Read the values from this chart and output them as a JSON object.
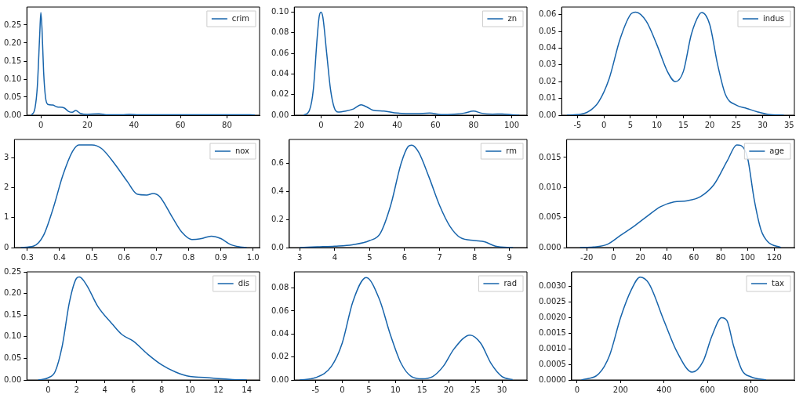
{
  "chart_data": [
    {
      "type": "line",
      "legend": "top right",
      "grid": false,
      "xlim": [
        -6,
        94
      ],
      "ylim": [
        0,
        0.3
      ],
      "xticks": [
        0,
        20,
        40,
        60,
        80
      ],
      "yticks": [
        {
          "value": 0,
          "label": "0.00"
        },
        {
          "value": 0.05,
          "label": "0.05"
        },
        {
          "value": 0.1,
          "label": "0.10"
        },
        {
          "value": 0.15,
          "label": "0.15"
        },
        {
          "value": 0.2,
          "label": "0.20"
        },
        {
          "value": 0.25,
          "label": "0.25"
        }
      ],
      "series": [
        {
          "name": "crim",
          "color": "#1764ab",
          "x": [
            -4,
            -2.5,
            -1.5,
            -0.5,
            0,
            0.5,
            1.2,
            2,
            3,
            5,
            7,
            10,
            12,
            13.5,
            15,
            17,
            20,
            25,
            28,
            35,
            38,
            42,
            50,
            68,
            75,
            90,
            92
          ],
          "values": [
            0,
            0.02,
            0.08,
            0.22,
            0.285,
            0.24,
            0.12,
            0.05,
            0.03,
            0.028,
            0.023,
            0.02,
            0.01,
            0.008,
            0.013,
            0.005,
            0.002,
            0.004,
            0.001,
            0.001,
            0.002,
            0.001,
            0.001,
            0.001,
            0.001,
            0.001,
            0
          ]
        }
      ]
    },
    {
      "type": "line",
      "legend": "top right",
      "grid": false,
      "xlim": [
        -14,
        108
      ],
      "ylim": [
        0,
        0.105
      ],
      "xticks": [
        0,
        20,
        40,
        60,
        80,
        100
      ],
      "yticks": [
        {
          "value": 0,
          "label": "0.00"
        },
        {
          "value": 0.02,
          "label": "0.02"
        },
        {
          "value": 0.04,
          "label": "0.04"
        },
        {
          "value": 0.06,
          "label": "0.06"
        },
        {
          "value": 0.08,
          "label": "0.08"
        },
        {
          "value": 0.1,
          "label": "0.10"
        }
      ],
      "series": [
        {
          "name": "zn",
          "color": "#1764ab",
          "x": [
            -9,
            -6,
            -4,
            -2,
            -1,
            0,
            1,
            3,
            5,
            7,
            9,
            13,
            17,
            21,
            24,
            27,
            33,
            40,
            50,
            57,
            63,
            70,
            75,
            80,
            84,
            90,
            95,
            100,
            104
          ],
          "values": [
            0,
            0.005,
            0.025,
            0.075,
            0.095,
            0.1,
            0.095,
            0.06,
            0.025,
            0.007,
            0.003,
            0.004,
            0.006,
            0.01,
            0.008,
            0.005,
            0.004,
            0.002,
            0.0015,
            0.002,
            0.0005,
            0.001,
            0.002,
            0.004,
            0.002,
            0.001,
            0.0012,
            0.0003,
            0
          ]
        }
      ]
    },
    {
      "type": "line",
      "legend": "top right",
      "grid": false,
      "xlim": [
        -8,
        36
      ],
      "ylim": [
        0,
        0.0645
      ],
      "xticks": [
        -5,
        0,
        5,
        10,
        15,
        20,
        25,
        30,
        35
      ],
      "yticks": [
        {
          "value": 0,
          "label": "0.00"
        },
        {
          "value": 0.01,
          "label": "0.01"
        },
        {
          "value": 0.02,
          "label": "0.02"
        },
        {
          "value": 0.03,
          "label": "0.03"
        },
        {
          "value": 0.04,
          "label": "0.04"
        },
        {
          "value": 0.05,
          "label": "0.05"
        },
        {
          "value": 0.06,
          "label": "0.06"
        }
      ],
      "series": [
        {
          "name": "indus",
          "color": "#1764ab",
          "x": [
            -7,
            -5,
            -3,
            -1,
            1,
            3,
            5,
            6,
            8,
            10,
            12,
            13.5,
            15,
            16.5,
            18,
            18.5,
            20,
            21.5,
            23,
            25,
            27,
            29,
            31,
            34
          ],
          "values": [
            0,
            0.0003,
            0.002,
            0.008,
            0.022,
            0.045,
            0.06,
            0.0615,
            0.056,
            0.042,
            0.026,
            0.02,
            0.026,
            0.048,
            0.06,
            0.0612,
            0.054,
            0.03,
            0.012,
            0.006,
            0.004,
            0.002,
            0.0005,
            0
          ]
        }
      ]
    },
    {
      "type": "line",
      "legend": "top right",
      "grid": false,
      "xlim": [
        0.26,
        1.02
      ],
      "ylim": [
        0,
        3.6
      ],
      "xticks": [
        0.3,
        0.4,
        0.5,
        0.6,
        0.7,
        0.8,
        0.9,
        {
          "value": 1,
          "label": "1.0"
        }
      ],
      "yticks": [
        0,
        1,
        2,
        3
      ],
      "series": [
        {
          "name": "nox",
          "color": "#1764ab",
          "x": [
            0.28,
            0.32,
            0.35,
            0.38,
            0.41,
            0.44,
            0.46,
            0.5,
            0.53,
            0.57,
            0.61,
            0.64,
            0.67,
            0.69,
            0.71,
            0.75,
            0.78,
            0.81,
            0.84,
            0.87,
            0.9,
            0.93,
            0.96,
            0.98
          ],
          "values": [
            0,
            0.05,
            0.4,
            1.3,
            2.4,
            3.2,
            3.42,
            3.42,
            3.3,
            2.8,
            2.2,
            1.78,
            1.75,
            1.8,
            1.7,
            1,
            0.5,
            0.27,
            0.3,
            0.38,
            0.3,
            0.1,
            0.02,
            0
          ]
        }
      ]
    },
    {
      "type": "line",
      "legend": "top right",
      "grid": false,
      "xlim": [
        2.7,
        9.5
      ],
      "ylim": [
        0,
        0.77
      ],
      "xticks": [
        3,
        4,
        5,
        6,
        7,
        8,
        9
      ],
      "yticks": [
        {
          "value": 0,
          "label": "0.0"
        },
        {
          "value": 0.2,
          "label": "0.2"
        },
        {
          "value": 0.4,
          "label": "0.4"
        },
        {
          "value": 0.6,
          "label": "0.6"
        }
      ],
      "series": [
        {
          "name": "rm",
          "color": "#1764ab",
          "x": [
            3,
            3.5,
            4,
            4.5,
            5,
            5.3,
            5.6,
            5.9,
            6.1,
            6.2,
            6.4,
            6.7,
            7,
            7.3,
            7.6,
            8,
            8.3,
            8.6,
            9.1
          ],
          "values": [
            0,
            0.005,
            0.01,
            0.02,
            0.05,
            0.1,
            0.3,
            0.6,
            0.72,
            0.73,
            0.68,
            0.5,
            0.3,
            0.15,
            0.07,
            0.05,
            0.04,
            0.01,
            0
          ]
        }
      ]
    },
    {
      "type": "line",
      "legend": "top right",
      "grid": false,
      "xlim": [
        -35,
        135
      ],
      "ylim": [
        0,
        0.018
      ],
      "xticks": [
        -20,
        0,
        20,
        40,
        60,
        80,
        100,
        120
      ],
      "yticks": [
        {
          "value": 0,
          "label": "0.000"
        },
        {
          "value": 0.005,
          "label": "0.005"
        },
        {
          "value": 0.01,
          "label": "0.010"
        },
        {
          "value": 0.015,
          "label": "0.015"
        }
      ],
      "series": [
        {
          "name": "age",
          "color": "#1764ab",
          "x": [
            -25,
            -15,
            -5,
            5,
            15,
            25,
            35,
            45,
            55,
            65,
            75,
            85,
            92,
            95,
            100,
            105,
            110,
            115,
            125
          ],
          "values": [
            0,
            0.0001,
            0.0005,
            0.002,
            0.0035,
            0.0052,
            0.0068,
            0.0076,
            0.0078,
            0.0085,
            0.0105,
            0.0145,
            0.0171,
            0.017,
            0.015,
            0.008,
            0.003,
            0.001,
            0
          ]
        }
      ]
    },
    {
      "type": "line",
      "legend": "top right",
      "grid": false,
      "xlim": [
        -1.5,
        14.9
      ],
      "ylim": [
        0,
        0.25
      ],
      "xticks": [
        0,
        2,
        4,
        6,
        8,
        10,
        12,
        14
      ],
      "yticks": [
        {
          "value": 0,
          "label": "0.00"
        },
        {
          "value": 0.05,
          "label": "0.05"
        },
        {
          "value": 0.1,
          "label": "0.10"
        },
        {
          "value": 0.15,
          "label": "0.15"
        },
        {
          "value": 0.2,
          "label": "0.20"
        },
        {
          "value": 0.25,
          "label": "0.25"
        }
      ],
      "series": [
        {
          "name": "dis",
          "color": "#1764ab",
          "x": [
            -0.7,
            0,
            0.5,
            1,
            1.5,
            2,
            2.2,
            2.7,
            3.5,
            4.5,
            5.2,
            6,
            7,
            8,
            9,
            10,
            11,
            12,
            13,
            14
          ],
          "values": [
            0,
            0.005,
            0.02,
            0.08,
            0.18,
            0.235,
            0.238,
            0.22,
            0.17,
            0.13,
            0.105,
            0.09,
            0.06,
            0.035,
            0.018,
            0.008,
            0.006,
            0.003,
            0.001,
            0
          ]
        }
      ]
    },
    {
      "type": "line",
      "legend": "top right",
      "grid": false,
      "xlim": [
        -9,
        34.7
      ],
      "ylim": [
        0,
        0.094
      ],
      "xticks": [
        -5,
        0,
        5,
        10,
        15,
        20,
        25,
        30
      ],
      "yticks": [
        {
          "value": 0,
          "label": "0.00"
        },
        {
          "value": 0.02,
          "label": "0.02"
        },
        {
          "value": 0.04,
          "label": "0.04"
        },
        {
          "value": 0.06,
          "label": "0.06"
        },
        {
          "value": 0.08,
          "label": "0.08"
        }
      ],
      "series": [
        {
          "name": "rad",
          "color": "#1764ab",
          "x": [
            -8,
            -5,
            -2,
            0,
            2,
            4.5,
            7,
            9,
            11,
            13,
            15,
            17,
            19,
            21,
            24,
            26,
            28,
            30,
            32
          ],
          "values": [
            0,
            0.002,
            0.012,
            0.032,
            0.068,
            0.089,
            0.07,
            0.04,
            0.015,
            0.003,
            0.001,
            0.003,
            0.012,
            0.027,
            0.039,
            0.032,
            0.014,
            0.003,
            0.0003
          ]
        }
      ]
    },
    {
      "type": "line",
      "legend": "top right",
      "grid": false,
      "xlim": [
        -25,
        1000
      ],
      "ylim": [
        0,
        0.00347
      ],
      "xticks": [
        0,
        200,
        400,
        600,
        800
      ],
      "yticks": [
        {
          "value": 0,
          "label": "0.0000"
        },
        {
          "value": 0.0005,
          "label": "0.0005"
        },
        {
          "value": 0.001,
          "label": "0.0010"
        },
        {
          "value": 0.0015,
          "label": "0.0015"
        },
        {
          "value": 0.002,
          "label": "0.0020"
        },
        {
          "value": 0.0025,
          "label": "0.0025"
        },
        {
          "value": 0.003,
          "label": "0.0030"
        }
      ],
      "series": [
        {
          "name": "tax",
          "color": "#1764ab",
          "x": [
            20,
            100,
            150,
            200,
            250,
            290,
            330,
            400,
            460,
            530,
            580,
            620,
            665,
            690,
            720,
            760,
            800,
            870
          ],
          "values": [
            0,
            0.0002,
            0.0008,
            0.002,
            0.0029,
            0.0033,
            0.0031,
            0.0019,
            0.0009,
            0.00025,
            0.0006,
            0.0014,
            0.002,
            0.0019,
            0.0011,
            0.0003,
            0.0001,
            0
          ]
        }
      ]
    }
  ]
}
